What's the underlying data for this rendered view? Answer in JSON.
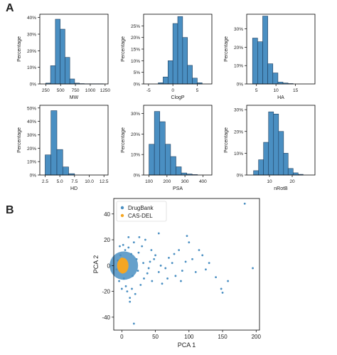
{
  "figure": {
    "panel_a_label": "A",
    "panel_b_label": "B"
  },
  "colors": {
    "bar_fill": "#4a8fc2",
    "bar_edge": "#1f3f5f",
    "drugbank": "#4a8fc2",
    "casdel": "#f5a623",
    "axis": "#000000"
  },
  "chart_data": [
    {
      "type": "bar",
      "subplot": "MW",
      "xlabel": "MW",
      "ylabel": "Percentage",
      "xlim": [
        150,
        1300
      ],
      "xticks": [
        250,
        500,
        750,
        1000,
        1250
      ],
      "ylim": [
        0,
        0.42
      ],
      "yticks": [
        0,
        0.1,
        0.2,
        0.3,
        0.4
      ],
      "ytick_labels": [
        "0%",
        "10%",
        "20%",
        "30%",
        "40%"
      ],
      "bin_edges": [
        250,
        331,
        412,
        493,
        574,
        655,
        736,
        817,
        898,
        979,
        1060,
        1141,
        1222
      ],
      "values": [
        0.005,
        0.11,
        0.39,
        0.33,
        0.16,
        0.03,
        0.005,
        0.002,
        0.001,
        0.001,
        0.001,
        0.001
      ],
      "grid": false
    },
    {
      "type": "bar",
      "subplot": "ClogP",
      "xlabel": "ClogP",
      "ylabel": "Percentage",
      "xlim": [
        -6,
        8
      ],
      "xticks": [
        -5,
        0,
        5
      ],
      "ylim": [
        0,
        0.3
      ],
      "yticks": [
        0,
        0.05,
        0.1,
        0.15,
        0.2,
        0.25
      ],
      "ytick_labels": [
        "0%",
        "5%",
        "10%",
        "15%",
        "20%",
        "25%"
      ],
      "bin_edges": [
        -3,
        -2,
        -1,
        0,
        1,
        2,
        3,
        4,
        5,
        6
      ],
      "values": [
        0.005,
        0.03,
        0.1,
        0.26,
        0.29,
        0.2,
        0.08,
        0.025,
        0.005
      ],
      "grid": false
    },
    {
      "type": "bar",
      "subplot": "HA",
      "xlabel": "HA",
      "ylabel": "Percentage",
      "xlim": [
        2.5,
        20
      ],
      "xticks": [
        5,
        10,
        15
      ],
      "ylim": [
        0,
        0.38
      ],
      "yticks": [
        0,
        0.1,
        0.2,
        0.3
      ],
      "ytick_labels": [
        "0%",
        "10%",
        "20%",
        "30%"
      ],
      "bin_edges": [
        4,
        5.3,
        6.6,
        7.9,
        9.2,
        10.5,
        11.8,
        13.1,
        14.4
      ],
      "values": [
        0.25,
        0.23,
        0.37,
        0.11,
        0.06,
        0.01,
        0.005,
        0.002
      ],
      "grid": false
    },
    {
      "type": "bar",
      "subplot": "HD",
      "xlabel": "HD",
      "ylabel": "Percentage",
      "xlim": [
        1.6,
        13.2
      ],
      "xticks": [
        2.5,
        5.0,
        7.5,
        10.0,
        12.5
      ],
      "xtick_labels": [
        "2.5",
        "5.0",
        "7.5",
        "10.0",
        "12.5"
      ],
      "ylim": [
        0,
        0.52
      ],
      "yticks": [
        0,
        0.1,
        0.2,
        0.3,
        0.4,
        0.5
      ],
      "ytick_labels": [
        "0%",
        "10%",
        "20%",
        "30%",
        "40%",
        "50%"
      ],
      "bin_edges": [
        2.5,
        3.5,
        4.5,
        5.5,
        6.5,
        7.5
      ],
      "values": [
        0.15,
        0.48,
        0.19,
        0.06,
        0.01
      ],
      "grid": false
    },
    {
      "type": "bar",
      "subplot": "PSA",
      "xlabel": "PSA",
      "ylabel": "Percentage",
      "xlim": [
        70,
        450
      ],
      "xticks": [
        100,
        200,
        300,
        400
      ],
      "ylim": [
        0,
        0.34
      ],
      "yticks": [
        0,
        0.1,
        0.2,
        0.3
      ],
      "ytick_labels": [
        "0%",
        "10%",
        "20%",
        "30%"
      ],
      "bin_edges": [
        100,
        130,
        160,
        190,
        220,
        250,
        280,
        310,
        340,
        370
      ],
      "values": [
        0.15,
        0.31,
        0.26,
        0.15,
        0.09,
        0.04,
        0.01,
        0.005,
        0.002
      ],
      "grid": false
    },
    {
      "type": "bar",
      "subplot": "nRotB",
      "xlabel": "nRotB",
      "ylabel": "Percentage",
      "xlim": [
        0,
        30
      ],
      "xticks": [
        10,
        20
      ],
      "ylim": [
        0,
        0.32
      ],
      "yticks": [
        0,
        0.1,
        0.2,
        0.3
      ],
      "ytick_labels": [
        "0%",
        "10%",
        "20%",
        "30%"
      ],
      "bin_edges": [
        3,
        5.2,
        7.4,
        9.6,
        11.8,
        14,
        16.2,
        18.2,
        20.4,
        22.6,
        24.8
      ],
      "values": [
        0.02,
        0.07,
        0.15,
        0.29,
        0.28,
        0.2,
        0.1,
        0.03,
        0.01,
        0.003
      ],
      "grid": false
    },
    {
      "type": "scatter",
      "subplot": "PCA",
      "xlabel": "PCA 1",
      "ylabel": "PCA 2",
      "xlim": [
        -12,
        205
      ],
      "ylim": [
        -50,
        52
      ],
      "xticks": [
        0,
        50,
        100,
        150,
        200
      ],
      "yticks": [
        -40,
        -20,
        0,
        20,
        40
      ],
      "legend_position": "upper-left",
      "series": [
        {
          "name": "DrugBank",
          "color": "#4a8fc2",
          "points": [
            [
              183,
              48
            ],
            [
              55,
              25
            ],
            [
              97,
              23
            ],
            [
              195,
              -2
            ],
            [
              148,
              -18
            ],
            [
              150,
              -21
            ],
            [
              158,
              -12
            ],
            [
              140,
              -9
            ],
            [
              120,
              8
            ],
            [
              105,
              5
            ],
            [
              95,
              3
            ],
            [
              110,
              -5
            ],
            [
              125,
              -3
            ],
            [
              85,
              12
            ],
            [
              70,
              6
            ],
            [
              80,
              -8
            ],
            [
              60,
              -14
            ],
            [
              45,
              -12
            ],
            [
              50,
              8
            ],
            [
              30,
              15
            ],
            [
              38,
              -6
            ],
            [
              42,
              3
            ],
            [
              65,
              -2
            ],
            [
              75,
              2
            ],
            [
              90,
              -4
            ],
            [
              35,
              20
            ],
            [
              28,
              -15
            ],
            [
              25,
              10
            ],
            [
              20,
              -22
            ],
            [
              18,
              18
            ],
            [
              15,
              -18
            ],
            [
              22,
              5
            ],
            [
              12,
              -25
            ],
            [
              10,
              14
            ],
            [
              8,
              -20
            ],
            [
              5,
              12
            ],
            [
              3,
              -10
            ],
            [
              -2,
              8
            ],
            [
              -4,
              -12
            ],
            [
              -6,
              4
            ],
            [
              -8,
              -3
            ],
            [
              2,
              16
            ],
            [
              6,
              -16
            ],
            [
              14,
              9
            ],
            [
              16,
              -8
            ],
            [
              24,
              -4
            ],
            [
              32,
              2
            ],
            [
              40,
              -2
            ],
            [
              48,
              5
            ],
            [
              55,
              -5
            ],
            [
              100,
              18
            ],
            [
              115,
              12
            ],
            [
              130,
              2
            ],
            [
              0,
              -18
            ],
            [
              -3,
              15
            ],
            [
              26,
              22
            ],
            [
              33,
              -10
            ],
            [
              44,
              12
            ],
            [
              58,
              0
            ],
            [
              68,
              -10
            ],
            [
              78,
              9
            ],
            [
              88,
              -12
            ],
            [
              18,
              -45
            ],
            [
              12,
              -28
            ],
            [
              10,
              22
            ]
          ]
        },
        {
          "name": "CAS-DEL",
          "color": "#f5a623",
          "points": [
            [
              0,
              0
            ],
            [
              1,
              1
            ],
            [
              -1,
              2
            ],
            [
              2,
              -1
            ],
            [
              0,
              3
            ],
            [
              3,
              2
            ],
            [
              1,
              -3
            ],
            [
              -2,
              -1
            ],
            [
              4,
              0
            ],
            [
              2,
              4
            ],
            [
              -1,
              -4
            ],
            [
              3,
              -3
            ],
            [
              5,
              1
            ],
            [
              0,
              5
            ],
            [
              -2,
              3
            ],
            [
              4,
              4
            ],
            [
              1,
              -5
            ],
            [
              6,
              -1
            ],
            [
              -3,
              0
            ],
            [
              5,
              -4
            ]
          ]
        }
      ]
    }
  ]
}
